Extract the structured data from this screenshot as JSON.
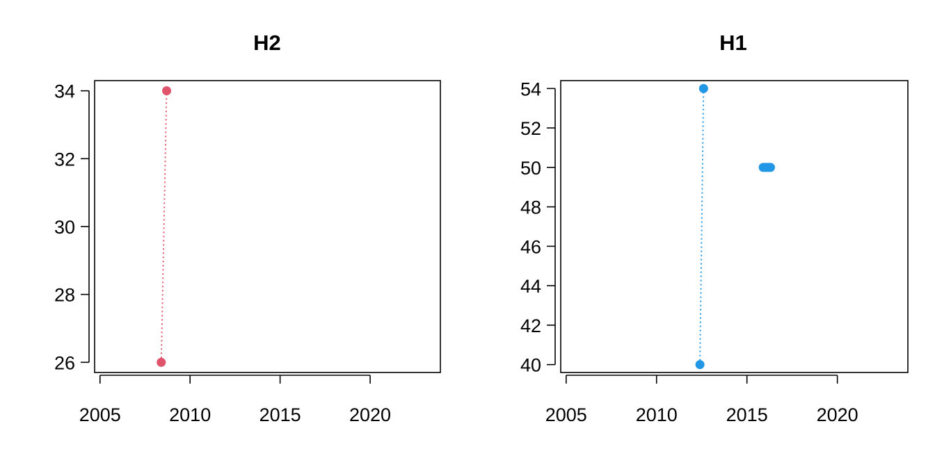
{
  "chart_data": [
    {
      "type": "scatter",
      "title": "H2",
      "xlabel": "",
      "ylabel": "",
      "xlim": [
        2004.7,
        2023.9
      ],
      "ylim": [
        25.7,
        34.3
      ],
      "x_ticks": [
        2005,
        2010,
        2015,
        2020
      ],
      "y_ticks": [
        26,
        28,
        30,
        32,
        34
      ],
      "color": "#DF536B",
      "grid": false,
      "series": [
        {
          "points": [
            {
              "x": 2008.4,
              "y": 26
            },
            {
              "x": 2008.7,
              "y": 34
            }
          ],
          "connected": true,
          "line_style": "dotted"
        }
      ]
    },
    {
      "type": "scatter",
      "title": "H1",
      "xlabel": "",
      "ylabel": "",
      "xlim": [
        2004.7,
        2023.9
      ],
      "ylim": [
        39.6,
        54.4
      ],
      "x_ticks": [
        2005,
        2010,
        2015,
        2020
      ],
      "y_ticks": [
        40,
        42,
        44,
        46,
        48,
        50,
        52,
        54
      ],
      "color": "#2297E6",
      "grid": false,
      "series": [
        {
          "points": [
            {
              "x": 2012.4,
              "y": 40
            },
            {
              "x": 2012.6,
              "y": 54
            }
          ],
          "connected": true,
          "line_style": "dotted"
        },
        {
          "points": [
            {
              "x": 2015.9,
              "y": 50
            },
            {
              "x": 2016.0,
              "y": 50
            },
            {
              "x": 2016.1,
              "y": 50
            },
            {
              "x": 2016.2,
              "y": 50
            },
            {
              "x": 2016.3,
              "y": 50
            }
          ],
          "connected": false
        }
      ]
    }
  ]
}
